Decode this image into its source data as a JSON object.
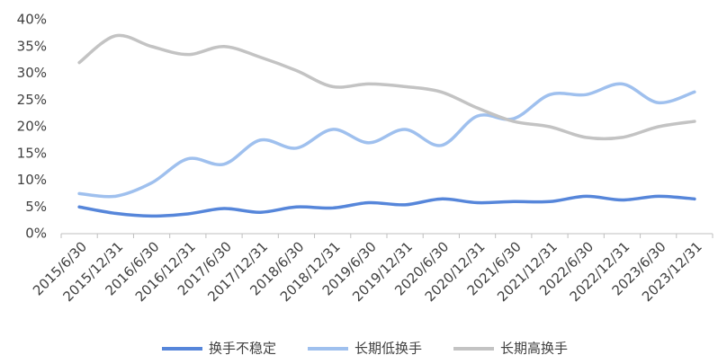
{
  "chart_data": {
    "type": "line",
    "categories": [
      "2015/6/30",
      "2015/12/31",
      "2016/6/30",
      "2016/12/31",
      "2017/6/30",
      "2017/12/31",
      "2018/6/30",
      "2018/12/31",
      "2019/6/30",
      "2019/12/31",
      "2020/6/30",
      "2020/12/31",
      "2021/6/30",
      "2021/12/31",
      "2022/6/30",
      "2022/12/31",
      "2023/6/30",
      "2023/12/31"
    ],
    "series": [
      {
        "name": "换手不稳定",
        "color": "#5686da",
        "values": [
          5,
          3.8,
          3.3,
          3.7,
          4.7,
          4,
          5,
          4.8,
          5.8,
          5.4,
          6.5,
          5.8,
          6,
          6,
          7,
          6.3,
          7,
          6.5
        ]
      },
      {
        "name": "长期低换手",
        "color": "#9fc0ee",
        "values": [
          7.5,
          7,
          9.5,
          14,
          13,
          17.5,
          16,
          19.5,
          17,
          19.5,
          16.5,
          22,
          21.5,
          26,
          26,
          28,
          24.5,
          26.5
        ]
      },
      {
        "name": "长期高换手",
        "color": "#c3c3c3",
        "values": [
          32,
          37,
          35,
          33.5,
          35,
          33,
          30.5,
          27.5,
          28,
          27.5,
          26.5,
          23.5,
          21,
          20,
          18,
          18,
          20,
          21
        ]
      }
    ],
    "ylim": [
      0,
      40
    ],
    "yticks": [
      {
        "value": 0,
        "label": "0%"
      },
      {
        "value": 5,
        "label": "5%"
      },
      {
        "value": 10,
        "label": "10%"
      },
      {
        "value": 15,
        "label": "15%"
      },
      {
        "value": 20,
        "label": "20%"
      },
      {
        "value": 25,
        "label": "25%"
      },
      {
        "value": 30,
        "label": "30%"
      },
      {
        "value": 35,
        "label": "35%"
      },
      {
        "value": 40,
        "label": "40%"
      }
    ],
    "grid": false,
    "legend": "bottom"
  }
}
